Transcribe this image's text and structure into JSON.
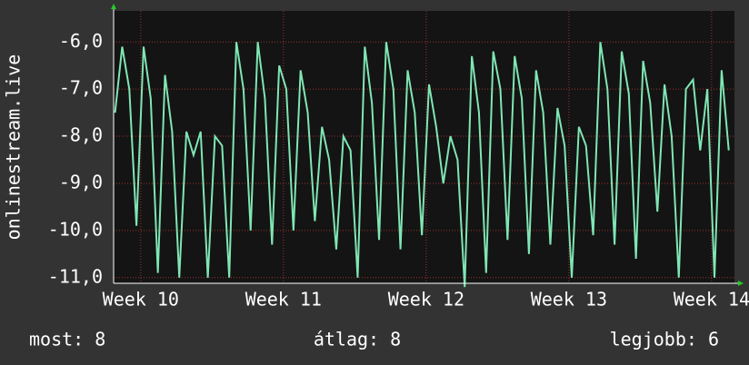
{
  "chart_data": {
    "type": "line",
    "y_label": "onlinestream.live",
    "x": [
      9.82,
      9.87,
      9.92,
      9.97,
      10.02,
      10.07,
      10.12,
      10.17,
      10.22,
      10.27,
      10.32,
      10.37,
      10.42,
      10.47,
      10.52,
      10.57,
      10.62,
      10.67,
      10.72,
      10.77,
      10.82,
      10.87,
      10.92,
      10.97,
      11.02,
      11.07,
      11.12,
      11.17,
      11.22,
      11.27,
      11.32,
      11.37,
      11.42,
      11.47,
      11.52,
      11.57,
      11.62,
      11.67,
      11.72,
      11.77,
      11.82,
      11.87,
      11.92,
      11.97,
      12.02,
      12.07,
      12.12,
      12.17,
      12.22,
      12.27,
      12.32,
      12.37,
      12.42,
      12.47,
      12.52,
      12.57,
      12.62,
      12.67,
      12.72,
      12.77,
      12.82,
      12.87,
      12.92,
      12.97,
      13.02,
      13.07,
      13.12,
      13.17,
      13.22,
      13.27,
      13.32,
      13.37,
      13.42,
      13.47,
      13.52,
      13.57,
      13.62,
      13.67,
      13.72,
      13.77,
      13.82,
      13.87,
      13.92,
      13.97,
      14.02,
      14.07,
      14.12
    ],
    "series": [
      {
        "color": "#7fe6b4",
        "values": [
          -7.5,
          -6.1,
          -7.0,
          -9.9,
          -6.1,
          -7.2,
          -10.9,
          -6.7,
          -7.9,
          -11.0,
          -7.9,
          -8.4,
          -7.9,
          -11.0,
          -8.0,
          -8.2,
          -11.0,
          -6.0,
          -7.0,
          -10.0,
          -6.0,
          -7.2,
          -10.3,
          -6.5,
          -7.0,
          -10.0,
          -6.6,
          -7.5,
          -9.8,
          -7.8,
          -8.5,
          -10.4,
          -8.0,
          -8.3,
          -11.0,
          -6.1,
          -7.3,
          -10.2,
          -6.0,
          -7.0,
          -10.4,
          -6.6,
          -7.5,
          -10.1,
          -6.9,
          -7.8,
          -9.0,
          -8.0,
          -8.5,
          -11.2,
          -6.3,
          -7.5,
          -10.9,
          -6.2,
          -7.0,
          -10.2,
          -6.3,
          -7.2,
          -10.5,
          -6.6,
          -7.5,
          -10.3,
          -7.4,
          -8.2,
          -11.0,
          -7.8,
          -8.2,
          -10.1,
          -6.0,
          -7.0,
          -10.3,
          -6.2,
          -7.1,
          -10.6,
          -6.4,
          -7.3,
          -9.6,
          -6.9,
          -8.0,
          -11.0,
          -7.0,
          -6.8,
          -8.3,
          -7.0,
          -11.0,
          -6.6,
          -8.3
        ]
      }
    ],
    "xlim": [
      9.81,
      14.16
    ],
    "ylim": [
      -11.12,
      -5.34
    ],
    "xticks": [
      {
        "value": 10,
        "label": "Week 10"
      },
      {
        "value": 11,
        "label": "Week 11"
      },
      {
        "value": 12,
        "label": "Week 12"
      },
      {
        "value": 13,
        "label": "Week 13"
      },
      {
        "value": 14,
        "label": "Week 14"
      }
    ],
    "yticks": [
      {
        "value": -11,
        "label": "-11,0"
      },
      {
        "value": -10,
        "label": "-10,0"
      },
      {
        "value": -9,
        "label": "-9,0"
      },
      {
        "value": -8,
        "label": "-8,0"
      },
      {
        "value": -7,
        "label": "-7,0"
      },
      {
        "value": -6,
        "label": "-6,0"
      }
    ],
    "grid": true,
    "footer": [
      "most: 8",
      "átlag: 8",
      "legjobb: 6"
    ]
  }
}
